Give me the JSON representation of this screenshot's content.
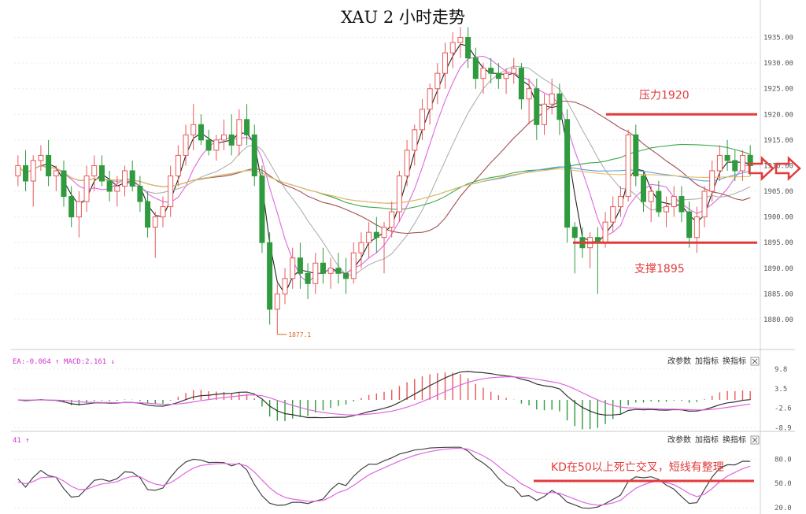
{
  "title": "XAU 2 小时走势",
  "chart_data": [
    {
      "type": "candlestick",
      "title": "XAU 2 小时走势",
      "y_ticks": [
        1880.0,
        1885.0,
        1890.0,
        1895.0,
        1900.0,
        1905.0,
        1910.0,
        1915.0,
        1920.0,
        1925.0,
        1930.0,
        1935.0
      ],
      "y_tick_labels": [
        "1880.00",
        "1885.00",
        "1890.00",
        "1895.00",
        "1900.00",
        "1905.00",
        "1910.00",
        "1915.00",
        "1920.00",
        "1925.00",
        "1930.00",
        "1935.00"
      ],
      "ylim": [
        1876,
        1938
      ],
      "low_label": "1877.1",
      "low_value": 1877.1,
      "levels": [
        {
          "label": "压力1920",
          "value": 1920
        },
        {
          "label": "支撑1895",
          "value": 1895
        }
      ],
      "moving_average_colors": [
        "#222222",
        "#e066e0",
        "#b0b0b0",
        "#a05050",
        "#3aa84a",
        "#5aa0e0",
        "#f2b85a"
      ],
      "ohlc": [
        [
          1908,
          1912,
          1906,
          1910
        ],
        [
          1910,
          1913,
          1905,
          1907
        ],
        [
          1907,
          1912,
          1902,
          1911
        ],
        [
          1911,
          1914,
          1909,
          1912
        ],
        [
          1912,
          1915,
          1906,
          1908
        ],
        [
          1908,
          1910,
          1905,
          1909
        ],
        [
          1909,
          1911,
          1902,
          1904
        ],
        [
          1904,
          1906,
          1898,
          1900
        ],
        [
          1900,
          1905,
          1896,
          1903
        ],
        [
          1903,
          1910,
          1901,
          1908
        ],
        [
          1908,
          1912,
          1905,
          1910
        ],
        [
          1910,
          1912,
          1906,
          1907
        ],
        [
          1907,
          1909,
          1903,
          1905
        ],
        [
          1905,
          1908,
          1902,
          1906
        ],
        [
          1906,
          1910,
          1904,
          1909
        ],
        [
          1909,
          1911,
          1905,
          1906
        ],
        [
          1906,
          1908,
          1901,
          1903
        ],
        [
          1903,
          1905,
          1896,
          1898
        ],
        [
          1898,
          1901,
          1892,
          1900
        ],
        [
          1900,
          1904,
          1898,
          1902
        ],
        [
          1902,
          1910,
          1900,
          1908
        ],
        [
          1908,
          1914,
          1906,
          1912
        ],
        [
          1912,
          1918,
          1910,
          1916
        ],
        [
          1916,
          1922,
          1913,
          1918
        ],
        [
          1918,
          1920,
          1914,
          1915
        ],
        [
          1915,
          1917,
          1912,
          1913
        ],
        [
          1913,
          1916,
          1911,
          1915
        ],
        [
          1915,
          1919,
          1913,
          1916
        ],
        [
          1916,
          1920,
          1912,
          1914
        ],
        [
          1914,
          1921,
          1912,
          1919
        ],
        [
          1919,
          1922,
          1914,
          1916
        ],
        [
          1916,
          1918,
          1906,
          1908
        ],
        [
          1908,
          1910,
          1893,
          1895
        ],
        [
          1895,
          1897,
          1879,
          1882
        ],
        [
          1882,
          1887,
          1877.1,
          1885
        ],
        [
          1885,
          1890,
          1883,
          1888
        ],
        [
          1888,
          1894,
          1886,
          1892
        ],
        [
          1892,
          1895,
          1886,
          1889
        ],
        [
          1889,
          1891,
          1884,
          1887
        ],
        [
          1887,
          1893,
          1885,
          1891
        ],
        [
          1891,
          1894,
          1887,
          1889
        ],
        [
          1889,
          1892,
          1886,
          1890
        ],
        [
          1890,
          1893,
          1887,
          1889
        ],
        [
          1889,
          1892,
          1885,
          1888
        ],
        [
          1888,
          1895,
          1887,
          1893
        ],
        [
          1893,
          1897,
          1890,
          1895
        ],
        [
          1895,
          1899,
          1892,
          1897
        ],
        [
          1897,
          1900,
          1893,
          1896
        ],
        [
          1896,
          1899,
          1889,
          1898
        ],
        [
          1898,
          1903,
          1896,
          1901
        ],
        [
          1901,
          1909,
          1899,
          1908
        ],
        [
          1908,
          1915,
          1906,
          1913
        ],
        [
          1913,
          1918,
          1910,
          1917
        ],
        [
          1917,
          1923,
          1915,
          1921
        ],
        [
          1921,
          1926,
          1918,
          1925
        ],
        [
          1925,
          1930,
          1922,
          1928
        ],
        [
          1928,
          1934,
          1925,
          1932
        ],
        [
          1932,
          1936,
          1929,
          1934
        ],
        [
          1934,
          1937,
          1931,
          1935
        ],
        [
          1935,
          1937,
          1929,
          1931
        ],
        [
          1931,
          1933,
          1925,
          1927
        ],
        [
          1927,
          1930,
          1924,
          1929
        ],
        [
          1929,
          1931,
          1926,
          1928
        ],
        [
          1928,
          1930,
          1925,
          1927
        ],
        [
          1927,
          1929,
          1924,
          1928
        ],
        [
          1928,
          1931,
          1926,
          1929
        ],
        [
          1929,
          1930,
          1921,
          1923
        ],
        [
          1923,
          1927,
          1918,
          1925
        ],
        [
          1925,
          1927,
          1915,
          1918
        ],
        [
          1918,
          1924,
          1916,
          1922
        ],
        [
          1922,
          1927,
          1920,
          1924
        ],
        [
          1924,
          1926,
          1916,
          1919
        ],
        [
          1919,
          1921,
          1895,
          1898
        ],
        [
          1898,
          1899,
          1889,
          1896
        ],
        [
          1896,
          1898,
          1892,
          1894
        ],
        [
          1894,
          1897,
          1890,
          1896
        ],
        [
          1896,
          1898,
          1885,
          1895
        ],
        [
          1895,
          1901,
          1894,
          1899
        ],
        [
          1899,
          1904,
          1897,
          1902
        ],
        [
          1902,
          1906,
          1900,
          1904
        ],
        [
          1904,
          1917,
          1903,
          1916
        ],
        [
          1916,
          1918,
          1906,
          1908
        ],
        [
          1908,
          1909,
          1901,
          1903
        ],
        [
          1903,
          1906,
          1899,
          1905
        ],
        [
          1905,
          1907,
          1900,
          1901
        ],
        [
          1901,
          1904,
          1898,
          1902
        ],
        [
          1902,
          1906,
          1900,
          1904
        ],
        [
          1904,
          1906,
          1899,
          1901
        ],
        [
          1901,
          1903,
          1894,
          1896
        ],
        [
          1896,
          1902,
          1893,
          1900
        ],
        [
          1900,
          1906,
          1898,
          1905
        ],
        [
          1905,
          1911,
          1903,
          1909
        ],
        [
          1909,
          1914,
          1907,
          1912
        ],
        [
          1912,
          1915,
          1909,
          1911
        ],
        [
          1911,
          1913,
          1907,
          1909
        ],
        [
          1909,
          1913,
          1907,
          1912
        ],
        [
          1912,
          1914,
          1908,
          1910
        ]
      ]
    },
    {
      "type": "bar",
      "header": "EA:-0.064 ↑ MACD:2.161 ↓",
      "buttons": [
        "改参数",
        "加指标",
        "换指标"
      ],
      "y_ticks": [
        9.8,
        3.5,
        -2.6,
        -8.9
      ],
      "y_tick_labels": [
        "9.8",
        "3.5",
        "-2.6",
        "-8.9"
      ],
      "ylim": [
        -9.5,
        10.5
      ]
    },
    {
      "type": "line",
      "header": "41 ↑",
      "buttons": [
        "改参数",
        "加指标",
        "换指标"
      ],
      "y_ticks": [
        20.0,
        50.0,
        80.0
      ],
      "y_tick_labels": [
        "20.0",
        "50.0",
        "80.0"
      ],
      "ylim": [
        15,
        95
      ],
      "annotation": "KD在50以上死亡交叉，短线有整理",
      "reference_value": 53
    }
  ]
}
